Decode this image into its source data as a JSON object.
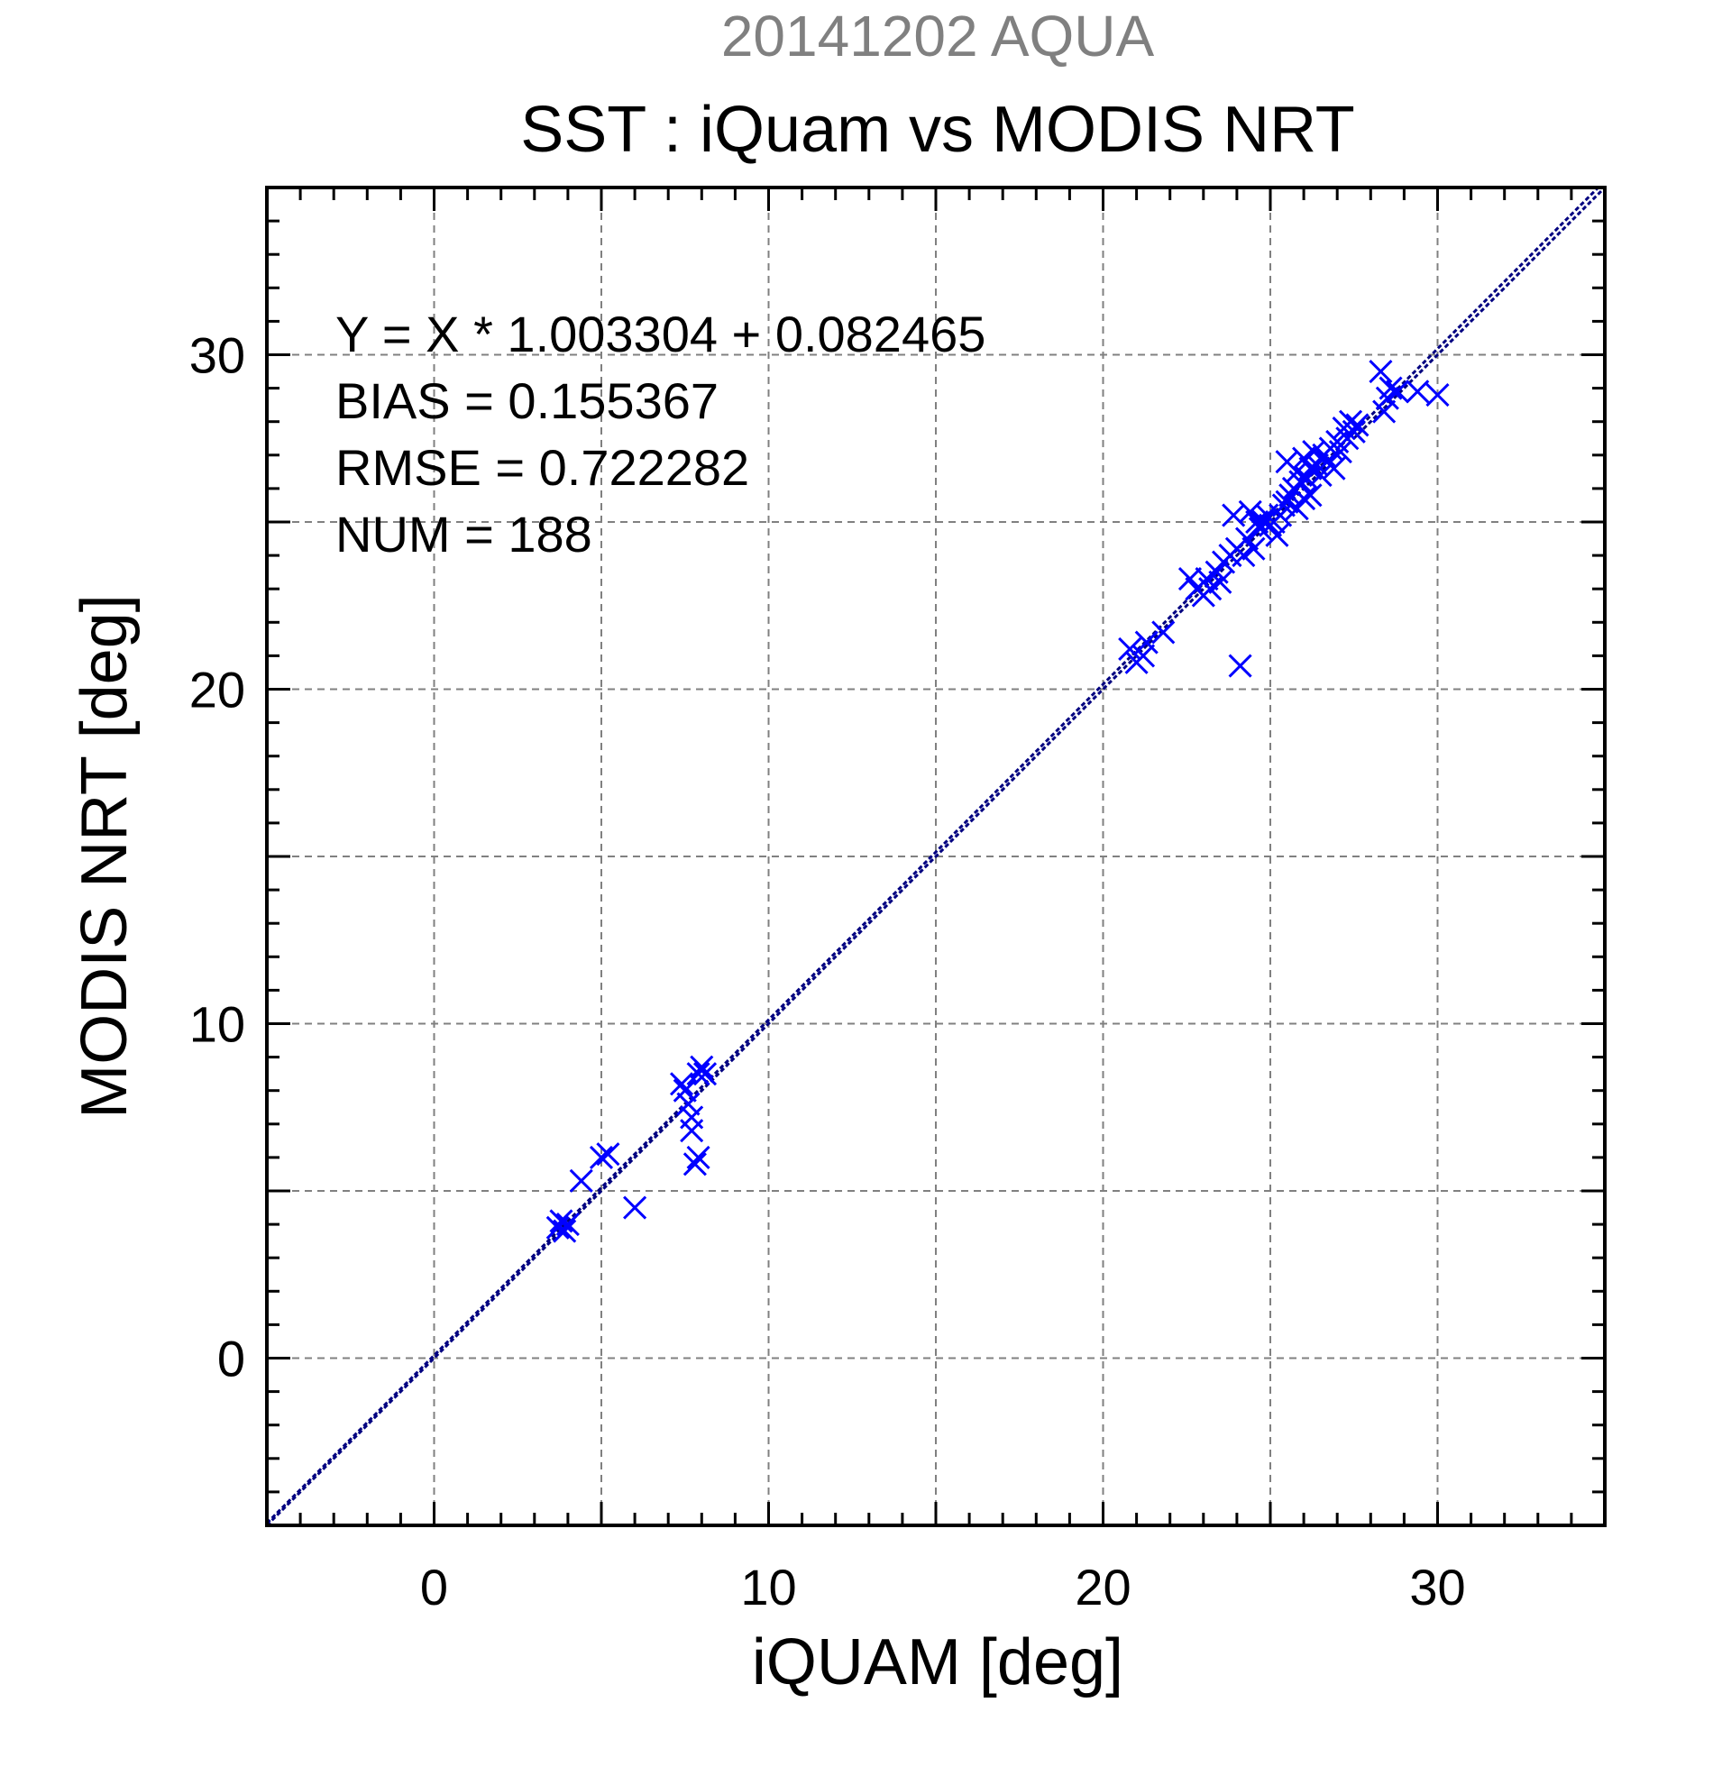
{
  "chart_data": {
    "type": "scatter",
    "title_top": "20141202 AQUA",
    "title": "SST : iQuam vs MODIS NRT",
    "xlabel": "iQUAM [deg]",
    "ylabel": "MODIS NRT [deg]",
    "xlim": [
      -5,
      35
    ],
    "ylim": [
      -5,
      35
    ],
    "x_ticks": [
      "0",
      "10",
      "20",
      "30"
    ],
    "y_ticks": [
      "0",
      "10",
      "20",
      "30"
    ],
    "grid": true,
    "stats": [
      "Y = X * 1.003304 + 0.082465",
      "BIAS = 0.155367",
      "RMSE = 0.722282",
      "NUM = 188"
    ],
    "colors": {
      "points": "#0000ff",
      "fit_line": "#000080",
      "title_top": "#808080",
      "grid": "#808080"
    },
    "lines": [
      {
        "kind": "identity",
        "slope": 1,
        "intercept": 0
      },
      {
        "kind": "regression",
        "slope": 1.003304,
        "intercept": 0.082465
      }
    ],
    "series": [
      {
        "marker": "x",
        "points": [
          [
            3.7,
            3.9
          ],
          [
            3.8,
            4.1
          ],
          [
            3.9,
            3.8
          ],
          [
            4.0,
            4.0
          ],
          [
            4.4,
            5.3
          ],
          [
            5.0,
            6.0
          ],
          [
            5.2,
            6.1
          ],
          [
            6.0,
            4.5
          ],
          [
            7.4,
            8.2
          ],
          [
            7.5,
            8.0
          ],
          [
            7.6,
            7.6
          ],
          [
            7.7,
            6.8
          ],
          [
            7.7,
            7.2
          ],
          [
            7.8,
            5.8
          ],
          [
            7.9,
            6.0
          ],
          [
            7.9,
            8.5
          ],
          [
            8.0,
            8.7
          ],
          [
            8.1,
            8.5
          ],
          [
            20.8,
            21.2
          ],
          [
            21.0,
            20.8
          ],
          [
            21.2,
            21.0
          ],
          [
            21.3,
            21.4
          ],
          [
            21.8,
            21.7
          ],
          [
            22.6,
            23.3
          ],
          [
            22.8,
            23.0
          ],
          [
            23.0,
            22.8
          ],
          [
            23.1,
            23.3
          ],
          [
            23.2,
            23.0
          ],
          [
            23.4,
            23.5
          ],
          [
            23.5,
            23.2
          ],
          [
            23.6,
            23.8
          ],
          [
            23.8,
            24.0
          ],
          [
            23.9,
            25.2
          ],
          [
            24.0,
            24.2
          ],
          [
            24.1,
            20.7
          ],
          [
            24.2,
            24.0
          ],
          [
            24.3,
            24.5
          ],
          [
            24.4,
            25.3
          ],
          [
            24.5,
            24.2
          ],
          [
            24.6,
            25.0
          ],
          [
            24.7,
            24.8
          ],
          [
            24.8,
            25.0
          ],
          [
            24.9,
            25.2
          ],
          [
            25.0,
            24.9
          ],
          [
            25.1,
            25.0
          ],
          [
            25.2,
            24.6
          ],
          [
            25.3,
            25.2
          ],
          [
            25.4,
            25.5
          ],
          [
            25.5,
            26.8
          ],
          [
            25.5,
            25.6
          ],
          [
            25.6,
            25.8
          ],
          [
            25.7,
            26.0
          ],
          [
            25.8,
            26.5
          ],
          [
            25.8,
            25.4
          ],
          [
            25.9,
            26.2
          ],
          [
            26.0,
            25.7
          ],
          [
            26.0,
            26.9
          ],
          [
            26.1,
            26.3
          ],
          [
            26.2,
            26.6
          ],
          [
            26.2,
            25.8
          ],
          [
            26.3,
            27.1
          ],
          [
            26.4,
            26.7
          ],
          [
            26.5,
            26.4
          ],
          [
            26.6,
            27.0
          ],
          [
            26.7,
            26.8
          ],
          [
            26.8,
            27.2
          ],
          [
            26.9,
            26.6
          ],
          [
            27.0,
            27.4
          ],
          [
            27.1,
            27.1
          ],
          [
            27.2,
            27.8
          ],
          [
            27.3,
            27.5
          ],
          [
            27.4,
            28.0
          ],
          [
            27.5,
            27.7
          ],
          [
            27.6,
            27.9
          ],
          [
            28.3,
            29.5
          ],
          [
            28.4,
            28.3
          ],
          [
            28.5,
            28.7
          ],
          [
            28.6,
            29.0
          ],
          [
            28.8,
            28.9
          ],
          [
            29.4,
            28.9
          ],
          [
            30.0,
            28.8
          ]
        ]
      }
    ]
  }
}
